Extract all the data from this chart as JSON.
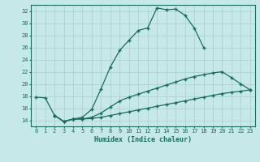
{
  "xlabel": "Humidex (Indice chaleur)",
  "bg_color": "#c6e8e8",
  "line_color": "#1a6b5a",
  "curve1_x": [
    0,
    1,
    2,
    3,
    4,
    5,
    6,
    7,
    8,
    9,
    10,
    11,
    12,
    13,
    14,
    15,
    16,
    17,
    18
  ],
  "curve1_y": [
    17.8,
    17.7,
    14.8,
    13.8,
    14.2,
    14.5,
    15.8,
    19.2,
    22.8,
    25.5,
    27.2,
    28.8,
    29.2,
    32.5,
    32.2,
    32.3,
    31.3,
    29.2,
    26.0
  ],
  "curve2_x": [
    2,
    3,
    4,
    5,
    6,
    7,
    8,
    9,
    10,
    11,
    12,
    13,
    14,
    15,
    16,
    17,
    18,
    19,
    20,
    21,
    22,
    23
  ],
  "curve2_y": [
    14.8,
    13.8,
    14.2,
    14.2,
    14.5,
    15.2,
    16.2,
    17.2,
    17.8,
    18.3,
    18.8,
    19.3,
    19.8,
    20.3,
    20.8,
    21.2,
    21.5,
    21.8,
    22.0,
    21.0,
    20.0,
    19.0
  ],
  "curve3_x": [
    2,
    3,
    4,
    5,
    6,
    7,
    8,
    9,
    10,
    11,
    12,
    13,
    14,
    15,
    16,
    17,
    18,
    19,
    20,
    21,
    22,
    23
  ],
  "curve3_y": [
    14.8,
    13.8,
    14.2,
    14.2,
    14.3,
    14.5,
    14.8,
    15.1,
    15.4,
    15.7,
    16.0,
    16.3,
    16.6,
    16.9,
    17.2,
    17.5,
    17.8,
    18.1,
    18.4,
    18.6,
    18.8,
    19.0
  ],
  "xlim": [
    -0.5,
    23.5
  ],
  "ylim": [
    13.0,
    33.0
  ],
  "yticks": [
    14,
    16,
    18,
    20,
    22,
    24,
    26,
    28,
    30,
    32
  ],
  "xticks": [
    0,
    1,
    2,
    3,
    4,
    5,
    6,
    7,
    8,
    9,
    10,
    11,
    12,
    13,
    14,
    15,
    16,
    17,
    18,
    19,
    20,
    21,
    22,
    23
  ],
  "xlabel_fontsize": 6.0,
  "tick_fontsize": 5.0
}
